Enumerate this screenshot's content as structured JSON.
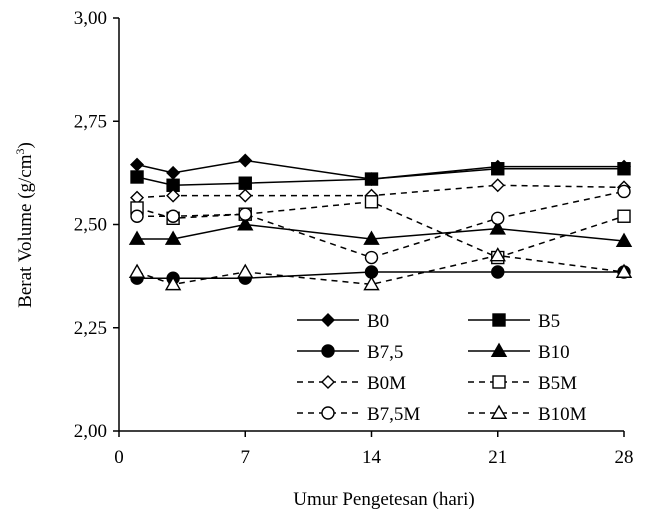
{
  "chart_data": {
    "type": "line",
    "xlabel": "Umur Pengetesan (hari)",
    "ylabel": "Berat Volume (g/cm³)",
    "ylabel_parts": {
      "main": "Berat Volume (g/cm",
      "sup": "3",
      "close": ")"
    },
    "xlim": [
      0,
      28
    ],
    "ylim": [
      2.0,
      3.0
    ],
    "x_ticks": [
      0,
      7,
      14,
      21,
      28
    ],
    "x_tick_labels": [
      "0",
      "7",
      "14",
      "21",
      "28"
    ],
    "y_ticks": [
      2.0,
      2.25,
      2.5,
      2.75,
      3.0
    ],
    "y_tick_labels": [
      "2,00",
      "2,25",
      "2,50",
      "2,75",
      "3,00"
    ],
    "grid": false,
    "legend_position": "bottom-right",
    "series": [
      {
        "name": "B0",
        "marker": "diamond",
        "filled": true,
        "line": "solid",
        "x": [
          1,
          3,
          7,
          14,
          21,
          28
        ],
        "y": [
          2.645,
          2.625,
          2.655,
          2.61,
          2.64,
          2.64
        ]
      },
      {
        "name": "B5",
        "marker": "square",
        "filled": true,
        "line": "solid",
        "x": [
          1,
          3,
          7,
          14,
          21,
          28
        ],
        "y": [
          2.615,
          2.595,
          2.6,
          2.61,
          2.635,
          2.635
        ]
      },
      {
        "name": "B7,5",
        "marker": "circle",
        "filled": true,
        "line": "solid",
        "x": [
          1,
          3,
          7,
          14,
          21,
          28
        ],
        "y": [
          2.37,
          2.37,
          2.37,
          2.385,
          2.385,
          2.385
        ]
      },
      {
        "name": "B10",
        "marker": "triangle",
        "filled": true,
        "line": "solid",
        "x": [
          1,
          3,
          7,
          14,
          21,
          28
        ],
        "y": [
          2.465,
          2.465,
          2.5,
          2.465,
          2.49,
          2.46
        ]
      },
      {
        "name": "B0M",
        "marker": "diamond",
        "filled": false,
        "line": "dashed",
        "x": [
          1,
          3,
          7,
          14,
          21,
          28
        ],
        "y": [
          2.565,
          2.57,
          2.57,
          2.57,
          2.595,
          2.59
        ]
      },
      {
        "name": "B5M",
        "marker": "square",
        "filled": false,
        "line": "dashed",
        "x": [
          1,
          3,
          7,
          14,
          21,
          28
        ],
        "y": [
          2.54,
          2.515,
          2.525,
          2.555,
          2.42,
          2.52
        ]
      },
      {
        "name": "B7,5M",
        "marker": "circle",
        "filled": false,
        "line": "dashed",
        "x": [
          1,
          3,
          7,
          14,
          21,
          28
        ],
        "y": [
          2.52,
          2.52,
          2.525,
          2.42,
          2.515,
          2.58
        ]
      },
      {
        "name": "B10M",
        "marker": "triangle",
        "filled": false,
        "line": "dashed",
        "x": [
          1,
          3,
          7,
          14,
          21,
          28
        ],
        "y": [
          2.385,
          2.355,
          2.385,
          2.355,
          2.425,
          2.385
        ]
      }
    ]
  }
}
